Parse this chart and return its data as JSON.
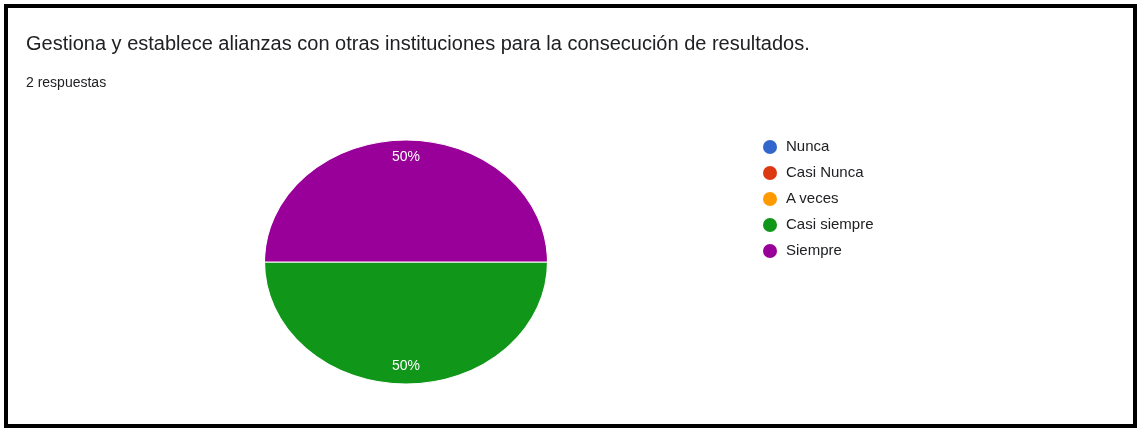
{
  "chart_data": {
    "type": "pie",
    "title": "Gestiona y establece alianzas con otras instituciones para la consecución de resultados.",
    "subtitle": "2 respuestas",
    "categories": [
      "Nunca",
      "Casi Nunca",
      "A veces",
      "Casi siempre",
      "Siempre"
    ],
    "values": [
      0,
      0,
      0,
      50,
      50
    ],
    "colors": [
      "#3366cc",
      "#dc3912",
      "#ff9900",
      "#109618",
      "#990099"
    ],
    "value_labels": [
      null,
      null,
      null,
      "50%",
      "50%"
    ],
    "legend": "right"
  }
}
